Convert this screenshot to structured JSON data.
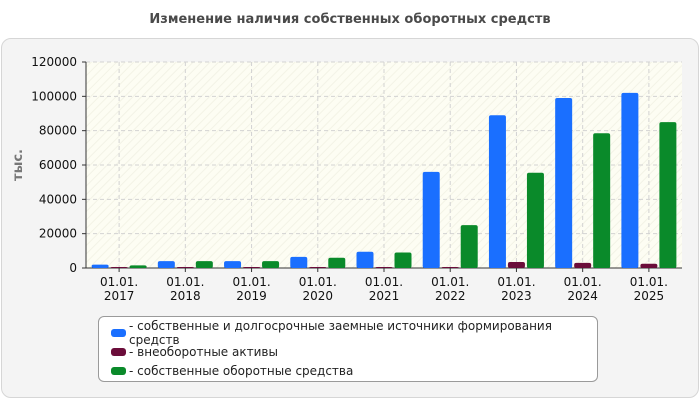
{
  "chart_data": {
    "type": "bar",
    "title": "Изменение наличия собственных оборотных средств",
    "ylabel": "тыс.",
    "xlabel": "",
    "ylim": [
      0,
      120000
    ],
    "yticks": [
      "0",
      "20000",
      "40000",
      "60000",
      "80000",
      "100000",
      "120000"
    ],
    "categories": [
      [
        "01.01.",
        "2017"
      ],
      [
        "01.01.",
        "2018"
      ],
      [
        "01.01.",
        "2019"
      ],
      [
        "01.01.",
        "2020"
      ],
      [
        "01.01.",
        "2021"
      ],
      [
        "01.01.",
        "2022"
      ],
      [
        "01.01.",
        "2023"
      ],
      [
        "01.01.",
        "2024"
      ],
      [
        "01.01.",
        "2025"
      ]
    ],
    "series": [
      {
        "name": "- собственные и долгосрочные заемные источники формирования средств",
        "color": "#1a6fff",
        "values": [
          2000,
          4000,
          4000,
          6500,
          9500,
          56000,
          89000,
          99000,
          102000
        ]
      },
      {
        "name": "- внеоборотные активы",
        "color": "#6b0d3a",
        "values": [
          500,
          500,
          500,
          500,
          500,
          500,
          3500,
          3000,
          2500
        ]
      },
      {
        "name": "- собственные оборотные средства",
        "color": "#0a8a2a",
        "values": [
          1500,
          4000,
          4000,
          6000,
          9000,
          25000,
          55500,
          78500,
          85000
        ]
      }
    ],
    "grid": true,
    "legend": "bottom"
  }
}
